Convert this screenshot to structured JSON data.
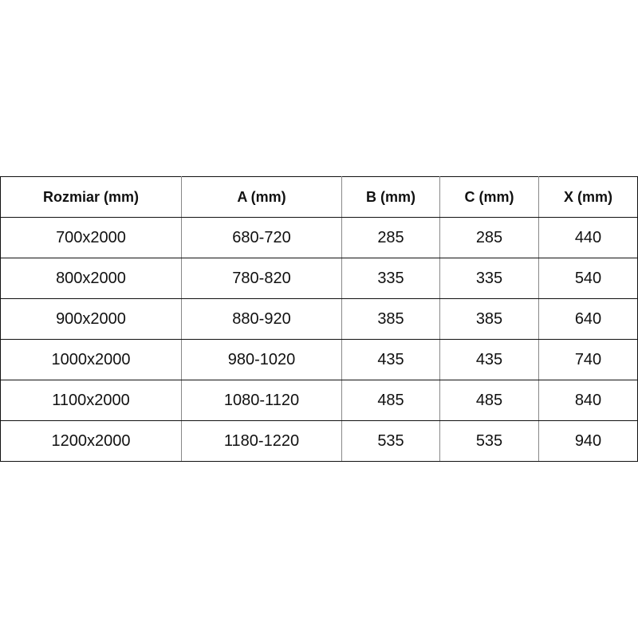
{
  "table": {
    "headers": [
      "Rozmiar (mm)",
      "A (mm)",
      "B (mm)",
      "C (mm)",
      "X (mm)"
    ],
    "rows": [
      [
        "700x2000",
        "680-720",
        "285",
        "285",
        "440"
      ],
      [
        "800x2000",
        "780-820",
        "335",
        "335",
        "540"
      ],
      [
        "900x2000",
        "880-920",
        "385",
        "385",
        "640"
      ],
      [
        "1000x2000",
        "980-1020",
        "435",
        "435",
        "740"
      ],
      [
        "1100x2000",
        "1080-1120",
        "485",
        "485",
        "840"
      ],
      [
        "1200x2000",
        "1180-1220",
        "535",
        "535",
        "940"
      ]
    ]
  }
}
